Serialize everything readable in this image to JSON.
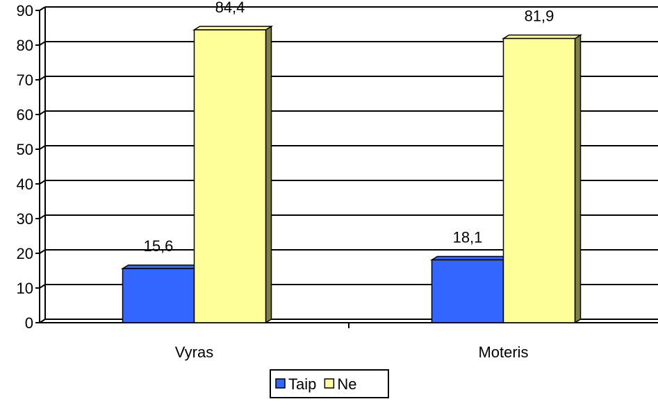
{
  "chart_data": {
    "type": "bar",
    "categories": [
      "Vyras",
      "Moteris"
    ],
    "series": [
      {
        "name": "Taip",
        "values": [
          15.6,
          18.1
        ],
        "labels": [
          "15,6",
          "18,1"
        ],
        "color": "#3366FF",
        "side_color": "#1A2E80"
      },
      {
        "name": "Ne",
        "values": [
          84.4,
          81.9
        ],
        "labels": [
          "84,4",
          "81,9"
        ],
        "color": "#FFFF99",
        "side_color": "#808040"
      }
    ],
    "y_ticks": [
      "0",
      "10",
      "20",
      "30",
      "40",
      "50",
      "60",
      "70",
      "80",
      "90"
    ],
    "ylim": [
      0,
      90
    ],
    "grid": true,
    "legend": "bottom-center",
    "three_d": true
  }
}
